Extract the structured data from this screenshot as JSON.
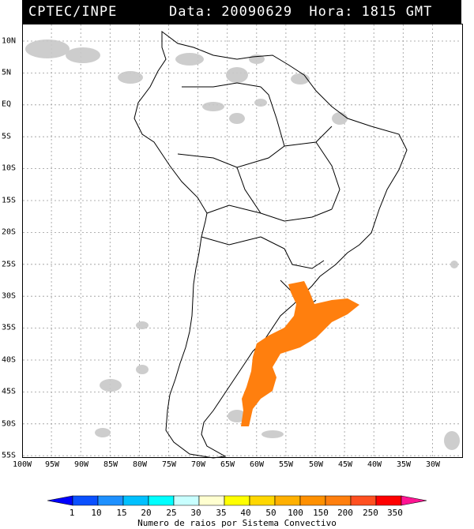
{
  "header": {
    "org": "CPTEC/INPE",
    "date_label": "Data:",
    "date": "20090629",
    "hour_label": "Hora:",
    "hour": "1815 GMT"
  },
  "map": {
    "lat_labels": [
      "10N",
      "5N",
      "EQ",
      "5S",
      "10S",
      "15S",
      "20S",
      "25S",
      "30S",
      "35S",
      "40S",
      "45S",
      "50S",
      "55S"
    ],
    "lon_labels": [
      "100W",
      "95W",
      "90W",
      "85W",
      "80W",
      "75W",
      "70W",
      "65W",
      "60W",
      "55W",
      "50W",
      "45W",
      "40W",
      "35W",
      "30W"
    ],
    "colors": {
      "lightning": "#ff7f0e",
      "cloud": "#c8c8c8",
      "grid": "#999999",
      "coast": "#000000"
    }
  },
  "colorbar": {
    "ticks": [
      "1",
      "10",
      "15",
      "20",
      "25",
      "30",
      "35",
      "40",
      "50",
      "100",
      "150",
      "200",
      "250",
      "350"
    ],
    "colors": [
      "#0000ff",
      "#0a50ff",
      "#1e90ff",
      "#00c0ff",
      "#00ffff",
      "#c8ffff",
      "#ffffd0",
      "#ffff00",
      "#ffd700",
      "#ffb000",
      "#ff9000",
      "#ff7f0e",
      "#ff5020",
      "#ff0000",
      "#ff1493"
    ],
    "title": "Numero de raios por Sistema Convectivo"
  }
}
